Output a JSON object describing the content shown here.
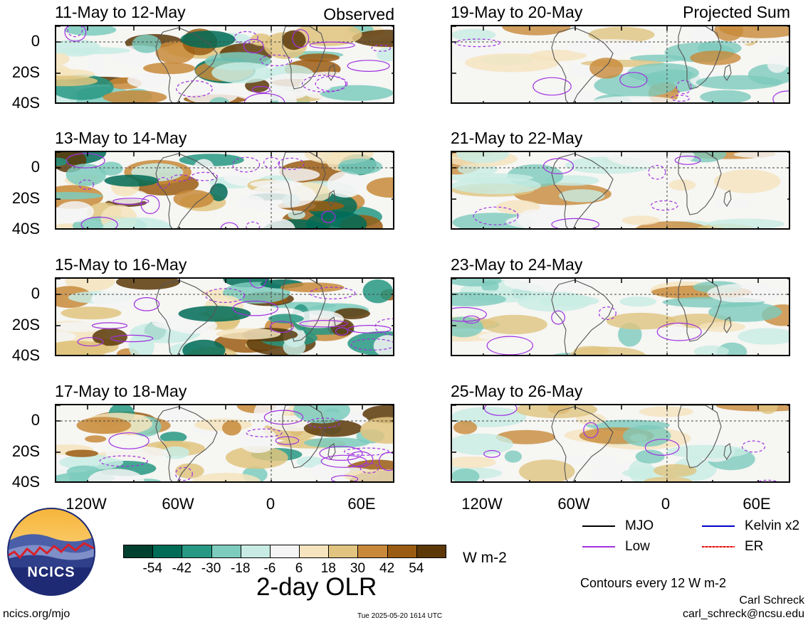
{
  "header": {
    "observed_label": "Observed",
    "projected_label": "Projected Sum"
  },
  "panels": {
    "observed": [
      {
        "title": "11-May to 12-May"
      },
      {
        "title": "13-May to 14-May"
      },
      {
        "title": "15-May to 16-May"
      },
      {
        "title": "17-May to 18-May"
      }
    ],
    "projected": [
      {
        "title": "19-May to 20-May"
      },
      {
        "title": "21-May to 22-May"
      },
      {
        "title": "23-May to 24-May"
      },
      {
        "title": "25-May to 26-May"
      }
    ]
  },
  "axes": {
    "lat_labels": [
      "0",
      "20S",
      "40S"
    ],
    "lon_labels": [
      "120W",
      "60W",
      "0",
      "60E"
    ]
  },
  "colorbar": {
    "ticks": [
      "-54",
      "-42",
      "-30",
      "-18",
      "-6",
      "6",
      "18",
      "30",
      "42",
      "54"
    ],
    "colors": [
      "#00402f",
      "#006b57",
      "#279883",
      "#7dcbbd",
      "#c8ece4",
      "#f5f5f5",
      "#f5e4bd",
      "#e0c47f",
      "#c8893a",
      "#9a5c12",
      "#5c3808"
    ],
    "units": "W m-2",
    "title": "2-day OLR"
  },
  "legend": {
    "items": [
      {
        "label": "MJO",
        "color": "#000000"
      },
      {
        "label": "Kelvin x2",
        "color": "#0000c8"
      },
      {
        "label": "Low",
        "color": "#a030e0"
      },
      {
        "label": "ER",
        "color": "#e01010"
      }
    ],
    "contour_note": "Contours every 12 W m-2"
  },
  "footer": {
    "url": "ncics.org/mjo",
    "timestamp": "Tue 2025-05-20 1614 UTC",
    "author": "Carl Schreck",
    "email": "carl_schreck@ncsu.edu",
    "logo_text": "NCICS"
  }
}
